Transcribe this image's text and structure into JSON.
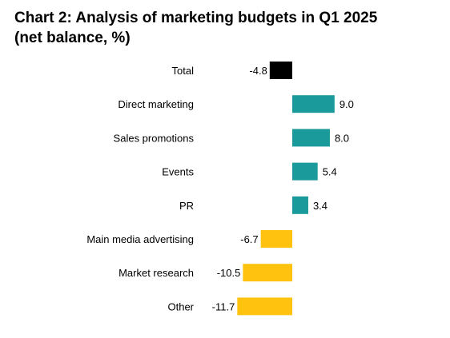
{
  "chart_data": {
    "type": "bar",
    "orientation": "horizontal",
    "title": "Chart 2: Analysis of marketing budgets in Q1 2025",
    "subtitle": "(net balance, %)",
    "categories": [
      "Total",
      "Direct marketing",
      "Sales promotions",
      "Events",
      "PR",
      "Main media advertising",
      "Market research",
      "Other"
    ],
    "values": [
      -4.8,
      9.0,
      8.0,
      5.4,
      3.4,
      -6.7,
      -10.5,
      -11.7
    ],
    "value_labels": [
      "-4.8",
      "9.0",
      "8.0",
      "5.4",
      "3.4",
      "-6.7",
      "-10.5",
      "-11.7"
    ],
    "colors": [
      "#000000",
      "#1a9a9a",
      "#1a9a9a",
      "#1a9a9a",
      "#1a9a9a",
      "#ffc20e",
      "#ffc20e",
      "#ffc20e"
    ],
    "xlim": [
      -11.7,
      9.0
    ],
    "grid": false,
    "legend": "none"
  }
}
